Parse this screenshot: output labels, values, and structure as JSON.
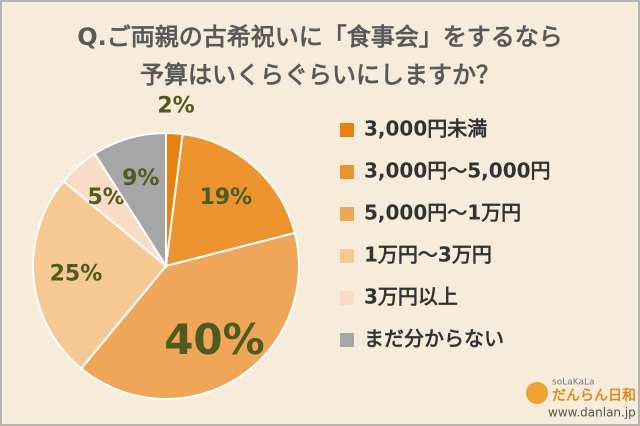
{
  "chart_data": {
    "type": "pie",
    "title": [
      "Q.ご両親の古希祝いに「食事会」をするなら",
      "予算はいくらぐらいにしますか？"
    ],
    "categories": [
      "3,000円未満",
      "3,000円～5,000円",
      "5,000円～1万円",
      "1万円～3万円",
      "3万円以上",
      "まだ分からない"
    ],
    "values": [
      2,
      19,
      40,
      25,
      5,
      9
    ],
    "value_labels": [
      "2%",
      "19%",
      "40%",
      "25%",
      "5%",
      "9%"
    ],
    "colors": [
      "#e8820e",
      "#ed9430",
      "#f0a658",
      "#f5c894",
      "#f9dcc5",
      "#a6a6a6"
    ],
    "legend": "right"
  },
  "branding": {
    "tagline": "soLaKaLa",
    "name": "だんらん日和",
    "url": "www.danlan.jp"
  }
}
